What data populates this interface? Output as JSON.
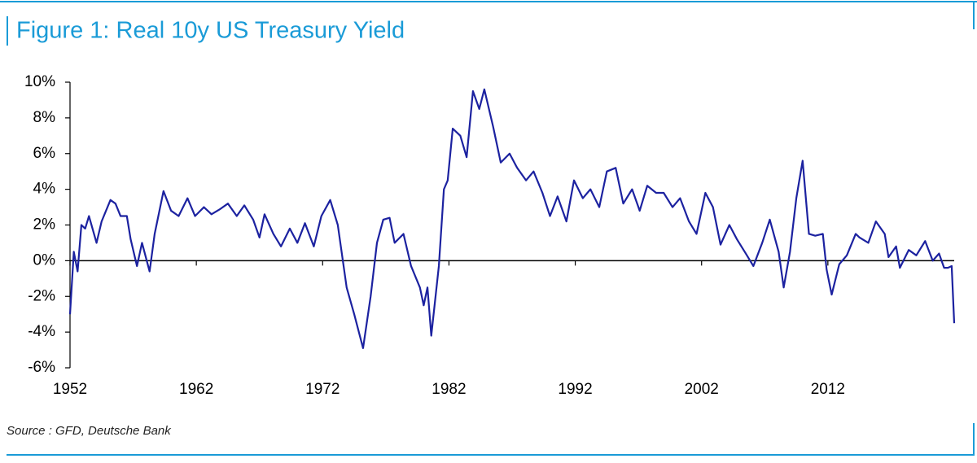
{
  "chart_data": {
    "type": "line",
    "title": "Figure 1: Real 10y US Treasury Yield",
    "source": "Source : GFD, Deutsche Bank",
    "x": [
      1952.0,
      1952.3,
      1952.6,
      1952.9,
      1953.2,
      1953.5,
      1954.1,
      1954.5,
      1955.2,
      1955.6,
      1956.0,
      1956.5,
      1956.8,
      1957.3,
      1957.7,
      1958.3,
      1958.7,
      1959.4,
      1960.0,
      1960.6,
      1961.3,
      1961.9,
      1962.6,
      1963.2,
      1963.9,
      1964.5,
      1965.2,
      1965.8,
      1966.5,
      1967.0,
      1967.4,
      1968.1,
      1968.7,
      1969.4,
      1970.0,
      1970.6,
      1971.3,
      1971.9,
      1972.6,
      1973.2,
      1973.9,
      1974.5,
      1975.2,
      1975.8,
      1976.3,
      1976.8,
      1977.3,
      1977.7,
      1978.4,
      1979.0,
      1979.7,
      1980.0,
      1980.3,
      1980.6,
      1981.2,
      1981.6,
      1981.9,
      1982.3,
      1982.9,
      1983.4,
      1983.9,
      1984.4,
      1984.8,
      1985.5,
      1986.1,
      1986.8,
      1987.4,
      1988.1,
      1988.7,
      1989.4,
      1990.0,
      1990.6,
      1991.3,
      1991.9,
      1992.6,
      1993.2,
      1993.9,
      1994.5,
      1995.2,
      1995.8,
      1996.5,
      1997.1,
      1997.7,
      1998.4,
      1999.0,
      1999.7,
      2000.3,
      2001.0,
      2001.6,
      2002.3,
      2002.9,
      2003.5,
      2004.2,
      2004.8,
      2005.5,
      2006.1,
      2006.8,
      2007.4,
      2008.1,
      2008.5,
      2009.0,
      2009.5,
      2010.0,
      2010.5,
      2011.0,
      2011.6,
      2011.9,
      2012.3,
      2012.9,
      2013.5,
      2014.2,
      2014.5,
      2015.2,
      2015.8,
      2016.5,
      2016.8,
      2017.4,
      2017.7,
      2018.4,
      2019.0,
      2019.7,
      2020.3,
      2020.8,
      2021.2,
      2021.5,
      2021.8,
      2022.0
    ],
    "series": [
      {
        "name": "Real 10y US Treasury Yield",
        "color": "#1c22a0",
        "values": [
          -3.0,
          0.5,
          -0.6,
          2.0,
          1.8,
          2.5,
          1.0,
          2.2,
          3.4,
          3.2,
          2.5,
          2.5,
          1.2,
          -0.3,
          1.0,
          -0.6,
          1.5,
          3.9,
          2.8,
          2.5,
          3.5,
          2.5,
          3.0,
          2.6,
          2.9,
          3.2,
          2.5,
          3.1,
          2.3,
          1.3,
          2.6,
          1.5,
          0.8,
          1.8,
          1.0,
          2.1,
          0.8,
          2.5,
          3.4,
          2.0,
          -1.5,
          -3.0,
          -4.9,
          -2.0,
          1.0,
          2.3,
          2.4,
          1.0,
          1.5,
          -0.3,
          -1.5,
          -2.5,
          -1.5,
          -4.2,
          -0.3,
          4.0,
          4.5,
          7.4,
          7.0,
          5.8,
          9.5,
          8.5,
          9.6,
          7.5,
          5.5,
          6.0,
          5.2,
          4.5,
          5.0,
          3.8,
          2.5,
          3.6,
          2.2,
          4.5,
          3.5,
          4.0,
          3.0,
          5.0,
          5.2,
          3.2,
          4.0,
          2.8,
          4.2,
          3.8,
          3.8,
          3.0,
          3.5,
          2.2,
          1.5,
          3.8,
          3.0,
          0.9,
          2.0,
          1.2,
          0.4,
          -0.3,
          1.0,
          2.3,
          0.5,
          -1.5,
          0.5,
          3.5,
          5.6,
          1.5,
          1.4,
          1.5,
          -0.5,
          -1.9,
          -0.2,
          0.3,
          1.5,
          1.3,
          1.0,
          2.2,
          1.5,
          0.2,
          0.8,
          -0.4,
          0.6,
          0.3,
          1.1,
          0.0,
          0.4,
          -0.4,
          -0.4,
          -0.3,
          -3.5
        ]
      }
    ],
    "xlim": [
      1952,
      2022
    ],
    "xticks": [
      1952,
      1962,
      1972,
      1982,
      1992,
      2002,
      2012
    ],
    "ylim": [
      -6,
      10
    ],
    "yticks": [
      {
        "value": -6,
        "label": "-6%"
      },
      {
        "value": -4,
        "label": "-4%"
      },
      {
        "value": -2,
        "label": "-2%"
      },
      {
        "value": 0,
        "label": "0%"
      },
      {
        "value": 2,
        "label": "2%"
      },
      {
        "value": 4,
        "label": "4%"
      },
      {
        "value": 6,
        "label": "6%"
      },
      {
        "value": 8,
        "label": "8%"
      },
      {
        "value": 10,
        "label": "10%"
      }
    ],
    "grid": false
  }
}
